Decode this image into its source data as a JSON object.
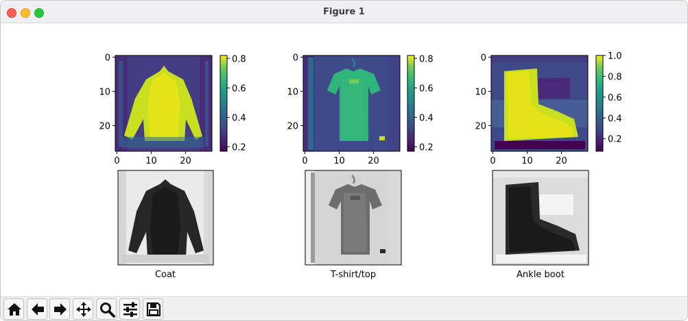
{
  "window": {
    "title": "Figure 1"
  },
  "colors": {
    "title_bg": "#f0f0f2",
    "close": "#ff5f57",
    "minimize": "#febc2e",
    "maximize": "#28c840"
  },
  "figures": [
    {
      "label": "Coat",
      "ticks": [
        "0",
        "10",
        "20"
      ],
      "cbar_ticks": [
        "0.8",
        "0.6",
        "0.4",
        "0.2"
      ]
    },
    {
      "label": "T-shirt/top",
      "ticks": [
        "0",
        "10",
        "20"
      ],
      "cbar_ticks": [
        "0.8",
        "0.6",
        "0.4",
        "0.2"
      ]
    },
    {
      "label": "Ankle boot",
      "ticks": [
        "0",
        "10",
        "20"
      ],
      "cbar_ticks": [
        "1.0",
        "0.8",
        "0.6",
        "0.4",
        "0.2"
      ]
    }
  ],
  "toolbar": {
    "buttons": [
      "home-icon",
      "back-icon",
      "forward-icon",
      "pan-icon",
      "zoom-icon",
      "configure-subplots-icon",
      "save-icon"
    ]
  }
}
